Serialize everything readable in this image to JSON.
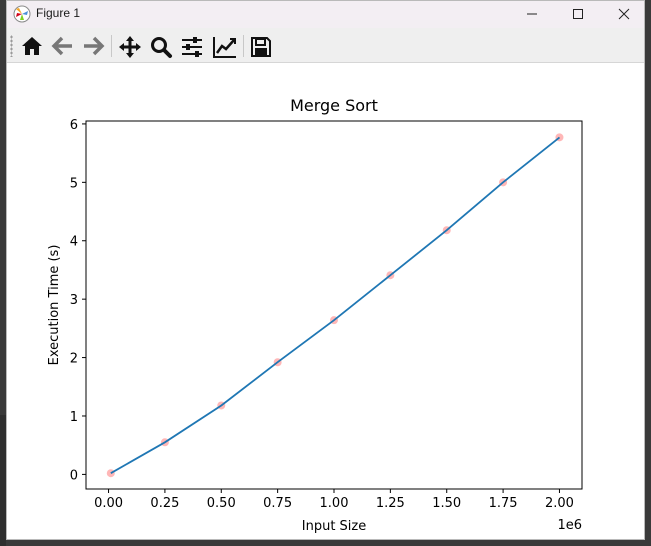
{
  "window": {
    "title": "Figure 1",
    "icon": "matplotlib-icon"
  },
  "titlebar_buttons": [
    "minimize-icon",
    "maximize-icon",
    "close-icon"
  ],
  "toolbar": {
    "buttons": [
      "home-icon",
      "back-arrow-icon",
      "forward-arrow-icon",
      "pan-icon",
      "zoom-icon",
      "configure-subplots-icon",
      "edit-axis-icon",
      "save-icon"
    ]
  },
  "colors": {
    "line": "#1f77b4",
    "marker": "#ff9999",
    "titlebar": "#f3eef3",
    "toolbar": "#efefef"
  },
  "chart_data": {
    "type": "line",
    "title": "Merge Sort",
    "xlabel": "Input Size",
    "ylabel": "Execution Time (s)",
    "x_offset_label": "1e6",
    "xlim": [
      -0.1,
      2.1
    ],
    "ylim": [
      -0.25,
      6.05
    ],
    "x_ticks": [
      0.0,
      0.25,
      0.5,
      0.75,
      1.0,
      1.25,
      1.5,
      1.75,
      2.0
    ],
    "x_tick_labels": [
      "0.00",
      "0.25",
      "0.50",
      "0.75",
      "1.00",
      "1.25",
      "1.50",
      "1.75",
      "2.00"
    ],
    "y_ticks": [
      0,
      1,
      2,
      3,
      4,
      5,
      6
    ],
    "y_tick_labels": [
      "0",
      "1",
      "2",
      "3",
      "4",
      "5",
      "6"
    ],
    "grid": false,
    "series": [
      {
        "style": "line+markers",
        "x": [
          0.01,
          0.25,
          0.5,
          0.75,
          1.0,
          1.25,
          1.5,
          1.75,
          2.0
        ],
        "y": [
          0.02,
          0.55,
          1.18,
          1.92,
          2.64,
          3.41,
          4.18,
          5.0,
          5.77
        ]
      }
    ]
  }
}
